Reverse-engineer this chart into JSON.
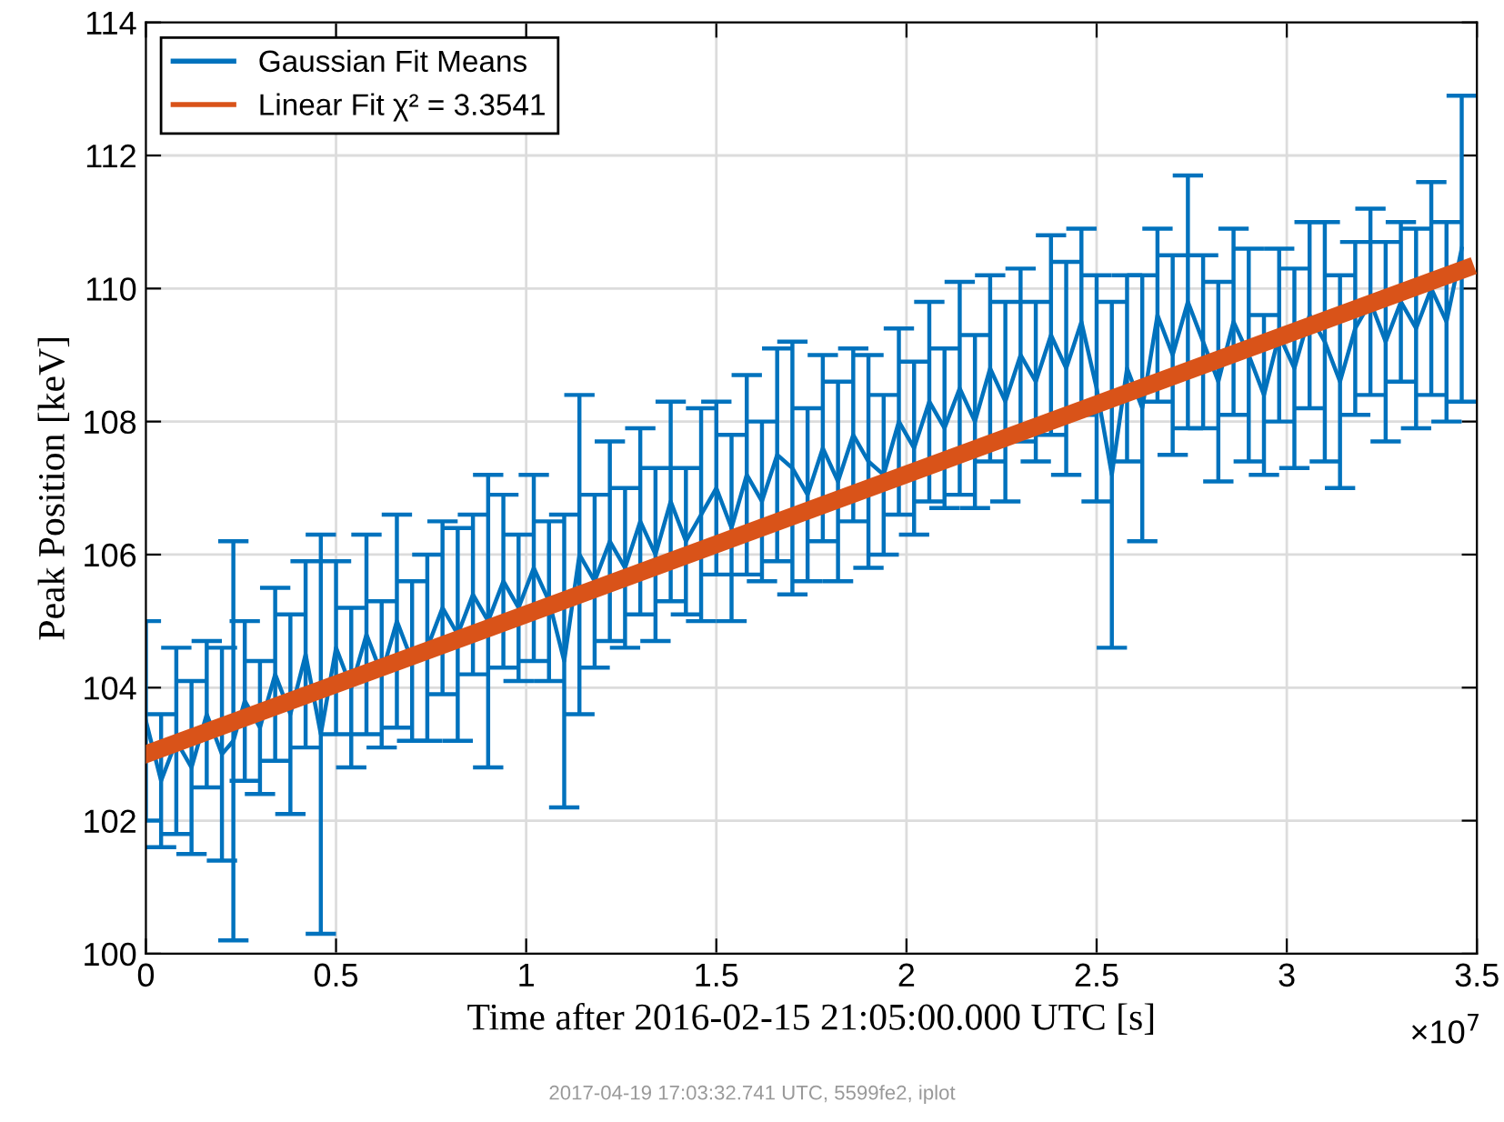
{
  "chart_data": {
    "type": "line",
    "xlabel": "Time after 2016-02-15 21:05:00.000 UTC [s]",
    "ylabel": "Peak Position [keV]",
    "xlim": [
      0,
      3.5
    ],
    "xticks": [
      0,
      0.5,
      1,
      1.5,
      2,
      2.5,
      3,
      3.5
    ],
    "ylim": [
      100,
      114
    ],
    "yticks": [
      100,
      102,
      104,
      106,
      108,
      110,
      112,
      114
    ],
    "grid": true,
    "legend": "top left",
    "marker": "none",
    "line_style": "solid",
    "annotations": [
      "×10$^{7}$",
      "2017-04-19 17:03:32.741 UTC, 5599fe2, iplot"
    ],
    "series": [
      {
        "name": "Gaussian Fit Means",
        "color": "#0072bd",
        "x": [
          0.0,
          0.04,
          0.08,
          0.12,
          0.16,
          0.2,
          0.23,
          0.26,
          0.3,
          0.34,
          0.38,
          0.42,
          0.46,
          0.5,
          0.54,
          0.58,
          0.62,
          0.66,
          0.7,
          0.74,
          0.78,
          0.82,
          0.86,
          0.9,
          0.94,
          0.98,
          1.02,
          1.06,
          1.1,
          1.14,
          1.18,
          1.22,
          1.26,
          1.3,
          1.34,
          1.38,
          1.42,
          1.46,
          1.5,
          1.54,
          1.58,
          1.62,
          1.66,
          1.7,
          1.74,
          1.78,
          1.82,
          1.86,
          1.9,
          1.94,
          1.98,
          2.02,
          2.06,
          2.1,
          2.14,
          2.18,
          2.22,
          2.26,
          2.3,
          2.34,
          2.38,
          2.42,
          2.46,
          2.5,
          2.54,
          2.58,
          2.62,
          2.66,
          2.7,
          2.74,
          2.78,
          2.82,
          2.86,
          2.9,
          2.94,
          2.98,
          3.02,
          3.06,
          3.1,
          3.14,
          3.18,
          3.22,
          3.26,
          3.3,
          3.34,
          3.38,
          3.42,
          3.46
        ],
        "values": [
          103.5,
          102.6,
          103.2,
          102.8,
          103.6,
          103.0,
          103.2,
          103.8,
          103.4,
          104.2,
          103.6,
          104.5,
          103.3,
          104.6,
          104.0,
          104.8,
          104.2,
          105.0,
          104.4,
          104.6,
          105.2,
          104.8,
          105.4,
          105.0,
          105.6,
          105.2,
          105.8,
          105.3,
          104.4,
          106.0,
          105.6,
          106.2,
          105.8,
          106.5,
          106.0,
          106.8,
          106.2,
          106.6,
          107.0,
          106.4,
          107.2,
          106.8,
          107.5,
          107.3,
          106.9,
          107.6,
          107.1,
          107.8,
          107.4,
          107.2,
          108.0,
          107.6,
          108.3,
          107.9,
          108.5,
          108.0,
          108.8,
          108.3,
          109.0,
          108.6,
          109.3,
          108.8,
          109.5,
          108.5,
          107.2,
          108.8,
          108.2,
          109.6,
          109.0,
          109.8,
          109.2,
          108.6,
          109.5,
          109.0,
          108.4,
          109.3,
          108.8,
          109.6,
          109.2,
          108.6,
          109.4,
          109.8,
          109.2,
          109.8,
          109.4,
          110.0,
          109.5,
          110.6
        ],
        "errors": [
          1.5,
          1.0,
          1.4,
          1.3,
          1.1,
          1.6,
          3.0,
          1.2,
          1.0,
          1.3,
          1.5,
          1.4,
          3.0,
          1.3,
          1.2,
          1.5,
          1.1,
          1.6,
          1.2,
          1.4,
          1.3,
          1.6,
          1.2,
          2.2,
          1.3,
          1.1,
          1.4,
          1.2,
          2.2,
          2.4,
          1.3,
          1.5,
          1.2,
          1.4,
          1.3,
          1.5,
          1.1,
          1.6,
          1.3,
          1.4,
          1.5,
          1.2,
          1.6,
          1.9,
          1.3,
          1.4,
          1.5,
          1.3,
          1.6,
          1.2,
          1.4,
          1.3,
          1.5,
          1.2,
          1.6,
          1.3,
          1.4,
          1.5,
          1.3,
          1.2,
          1.5,
          1.6,
          1.4,
          1.7,
          2.6,
          1.4,
          2.0,
          1.3,
          1.5,
          1.9,
          1.3,
          1.5,
          1.4,
          1.6,
          1.2,
          1.3,
          1.5,
          1.4,
          1.8,
          1.6,
          1.3,
          1.4,
          1.5,
          1.2,
          1.5,
          1.6,
          1.5,
          2.3
        ]
      },
      {
        "name": "Linear Fit χ² = 3.3541",
        "color": "#d95319",
        "x": [
          0,
          3.47
        ],
        "values": [
          103.0,
          110.3
        ]
      }
    ]
  }
}
